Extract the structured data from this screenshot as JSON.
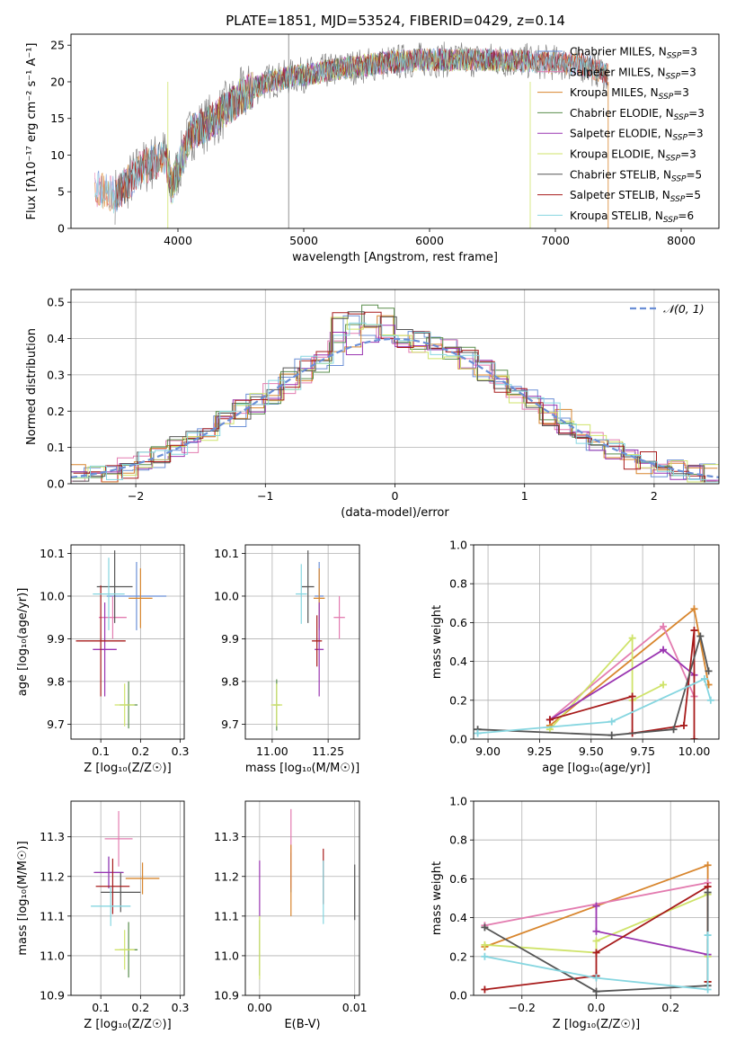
{
  "figure": {
    "title": "PLATE=1851, MJD=53524, FIBERID=0429, z=0.14"
  },
  "colors": {
    "chabrier_miles": "#6b8fd6",
    "salpeter_miles": "#e37cb0",
    "kroupa_miles": "#d8862e",
    "chabrier_elodie": "#5a8e4c",
    "salpeter_elodie": "#9a35b1",
    "kroupa_elodie": "#cfe36a",
    "chabrier_stelib": "#555555",
    "salpeter_stelib": "#a71b1b",
    "kroupa_stelib": "#86d6e0",
    "gaussian": "#6b8fd6"
  },
  "chart_data": [
    {
      "id": "spectrum",
      "type": "line",
      "title": "PLATE=1851, MJD=53524, FIBERID=0429, z=0.14",
      "xlabel": "wavelength [Angstrom, rest frame]",
      "ylabel": "Flux [fλ10⁻¹⁷ erg cm⁻² s⁻¹ A⁻¹]",
      "xlim": [
        3150,
        8300
      ],
      "ylim": [
        0,
        26.5
      ],
      "xticks": [
        "4000",
        "5000",
        "6000",
        "7000",
        "8000"
      ],
      "yticks": [
        "0",
        "5",
        "10",
        "15",
        "20",
        "25"
      ],
      "continuum": {
        "x": [
          3340,
          3500,
          3700,
          3900,
          3950,
          4100,
          4300,
          4500,
          4700,
          4900,
          5100,
          5300,
          5600,
          5900,
          6200,
          6500,
          6800,
          7000,
          7200,
          7350,
          7420
        ],
        "y": [
          5.5,
          4.5,
          8,
          10,
          5.5,
          13,
          15,
          18,
          20,
          20.7,
          21.2,
          21.8,
          22.5,
          23,
          23,
          23,
          22.8,
          22.6,
          22.4,
          21.5,
          21
        ]
      },
      "legend": [
        {
          "label": "Chabrier MILES, N",
          "sub": "SSP",
          "suffix": "=3",
          "color_key": "chabrier_miles"
        },
        {
          "label": "Salpeter MILES, N",
          "sub": "SSP",
          "suffix": "=3",
          "color_key": "salpeter_miles"
        },
        {
          "label": "Kroupa MILES, N",
          "sub": "SSP",
          "suffix": "=3",
          "color_key": "kroupa_miles"
        },
        {
          "label": "Chabrier ELODIE, N",
          "sub": "SSP",
          "suffix": "=3",
          "color_key": "chabrier_elodie"
        },
        {
          "label": "Salpeter ELODIE, N",
          "sub": "SSP",
          "suffix": "=3",
          "color_key": "salpeter_elodie"
        },
        {
          "label": "Kroupa ELODIE, N",
          "sub": "SSP",
          "suffix": "=3",
          "color_key": "kroupa_elodie"
        },
        {
          "label": "Chabrier STELIB, N",
          "sub": "SSP",
          "suffix": "=5",
          "color_key": "chabrier_stelib"
        },
        {
          "label": "Salpeter STELIB, N",
          "sub": "SSP",
          "suffix": "=5",
          "color_key": "salpeter_stelib"
        },
        {
          "label": "Kroupa STELIB, N",
          "sub": "SSP",
          "suffix": "=6",
          "color_key": "kroupa_stelib"
        }
      ]
    },
    {
      "id": "residuals",
      "type": "line",
      "xlabel": "(data-model)/error",
      "ylabel": "Normed distribution",
      "xlim": [
        -2.5,
        2.5
      ],
      "ylim": [
        0,
        0.535
      ],
      "xticks": [
        "−2",
        "−1",
        "0",
        "1",
        "2"
      ],
      "yticks": [
        "0.0",
        "0.1",
        "0.2",
        "0.3",
        "0.4",
        "0.5"
      ],
      "legend_label": "𝒩(0, 1)",
      "legend_position": "top-right",
      "grid": true
    },
    {
      "id": "z_vs_age",
      "type": "scatter",
      "xlabel": "Z [log₁₀(Z/Z☉)]",
      "ylabel": "age  [log₁₀(age/yr)]",
      "xlim": [
        0.025,
        0.31
      ],
      "ylim": [
        9.665,
        10.12
      ],
      "xticks": [
        "0.1",
        "0.2",
        "0.3"
      ],
      "yticks": [
        "9.7",
        "9.8",
        "9.9",
        "10.0",
        "10.1"
      ],
      "grid": true,
      "points": [
        {
          "c": "chabrier_miles",
          "x": 0.19,
          "xe": 0.15,
          "y": 10.0,
          "ye": 0.08
        },
        {
          "c": "salpeter_miles",
          "x": 0.13,
          "xe": 0.07,
          "y": 9.95,
          "ye": 0.05
        },
        {
          "c": "kroupa_miles",
          "x": 0.2,
          "xe": 0.06,
          "y": 9.995,
          "ye": 0.07
        },
        {
          "c": "chabrier_elodie",
          "x": 0.17,
          "xe": 0.045,
          "y": 9.745,
          "ye": 0.055
        },
        {
          "c": "salpeter_elodie",
          "x": 0.11,
          "xe": 0.06,
          "y": 9.875,
          "ye": 0.11
        },
        {
          "c": "kroupa_elodie",
          "x": 0.16,
          "xe": 0.05,
          "y": 9.745,
          "ye": 0.05
        },
        {
          "c": "chabrier_stelib",
          "x": 0.135,
          "xe": 0.09,
          "y": 10.022,
          "ye": 0.085
        },
        {
          "c": "salpeter_stelib",
          "x": 0.1,
          "xe": 0.125,
          "y": 9.895,
          "ye": 0.13
        },
        {
          "c": "kroupa_stelib",
          "x": 0.12,
          "xe": 0.08,
          "y": 10.005,
          "ye": 0.085
        }
      ]
    },
    {
      "id": "mass_vs_age",
      "type": "scatter",
      "xlabel": "mass [log₁₀(M/M☉)]",
      "ylabel": "",
      "xlim": [
        10.88,
        11.39
      ],
      "ylim": [
        9.665,
        10.12
      ],
      "xticks": [
        "11.00",
        "11.25"
      ],
      "yticks": [
        "9.7",
        "9.8",
        "9.9",
        "10.0",
        "10.1"
      ],
      "grid": true,
      "points": [
        {
          "c": "chabrier_miles",
          "x": 11.21,
          "xe": 0.04,
          "y": 10.0,
          "ye": 0.08
        },
        {
          "c": "salpeter_miles",
          "x": 11.3,
          "xe": 0.05,
          "y": 9.95,
          "ye": 0.05
        },
        {
          "c": "kroupa_miles",
          "x": 11.21,
          "xe": 0.05,
          "y": 9.995,
          "ye": 0.07
        },
        {
          "c": "chabrier_elodie",
          "x": 11.02,
          "xe": 0.03,
          "y": 9.745,
          "ye": 0.06
        },
        {
          "c": "salpeter_elodie",
          "x": 11.21,
          "xe": 0.04,
          "y": 9.875,
          "ye": 0.11
        },
        {
          "c": "kroupa_elodie",
          "x": 11.02,
          "xe": 0.05,
          "y": 9.745,
          "ye": 0.05
        },
        {
          "c": "chabrier_stelib",
          "x": 11.16,
          "xe": 0.055,
          "y": 10.022,
          "ye": 0.085
        },
        {
          "c": "salpeter_stelib",
          "x": 11.2,
          "xe": 0.045,
          "y": 9.895,
          "ye": 0.06
        },
        {
          "c": "kroupa_stelib",
          "x": 11.13,
          "xe": 0.05,
          "y": 10.005,
          "ye": 0.07
        }
      ]
    },
    {
      "id": "age_weights",
      "type": "line",
      "xlabel": "age  [log₁₀(age/yr)]",
      "ylabel": "mass weight",
      "xlim": [
        8.93,
        10.12
      ],
      "ylim": [
        0,
        1
      ],
      "xticks": [
        "9.00",
        "9.25",
        "9.50",
        "9.75",
        "10.00"
      ],
      "yticks": [
        "0.0",
        "0.2",
        "0.4",
        "0.6",
        "0.8",
        "1.0"
      ],
      "grid": true,
      "series": [
        {
          "c": "kroupa_miles",
          "x": [
            9.3,
            10.0,
            10.07
          ],
          "y": [
            0.07,
            0.67,
            0.28
          ]
        },
        {
          "c": "salpeter_miles",
          "x": [
            9.3,
            9.85,
            10.0
          ],
          "y": [
            0.1,
            0.58,
            0.22
          ]
        },
        {
          "c": "kroupa_elodie",
          "x": [
            9.3,
            9.7,
            9.7,
            9.85
          ],
          "y": [
            0.05,
            0.52,
            0.2,
            0.28
          ]
        },
        {
          "c": "salpeter_elodie",
          "x": [
            9.3,
            9.85,
            10.0
          ],
          "y": [
            0.1,
            0.46,
            0.33
          ]
        },
        {
          "c": "salpeter_stelib",
          "x": [
            9.3,
            9.7,
            9.7,
            9.95,
            10.0,
            10.0
          ],
          "y": [
            0.1,
            0.22,
            0.03,
            0.07,
            0.56,
            0.0
          ]
        },
        {
          "c": "chabrier_stelib",
          "x": [
            8.95,
            9.6,
            9.9,
            10.03,
            10.07
          ],
          "y": [
            0.05,
            0.02,
            0.05,
            0.53,
            0.35
          ]
        },
        {
          "c": "kroupa_stelib",
          "x": [
            8.95,
            9.6,
            10.05,
            10.08
          ],
          "y": [
            0.03,
            0.09,
            0.31,
            0.2
          ]
        }
      ]
    },
    {
      "id": "z_vs_mass",
      "type": "scatter",
      "xlabel": "Z [log₁₀(Z/Z☉)]",
      "ylabel": "mass [log₁₀(M/M☉)]",
      "xlim": [
        0.025,
        0.31
      ],
      "ylim": [
        10.9,
        11.39
      ],
      "xticks": [
        "0.1",
        "0.2",
        "0.3"
      ],
      "yticks": [
        "10.9",
        "11.0",
        "11.1",
        "11.2",
        "11.3"
      ],
      "grid": true,
      "points": [
        {
          "c": "chabrier_miles",
          "x": 0.12,
          "xe": 0.07,
          "y": 11.21,
          "ye": 0.04
        },
        {
          "c": "salpeter_miles",
          "x": 0.145,
          "xe": 0.07,
          "y": 11.295,
          "ye": 0.07
        },
        {
          "c": "kroupa_miles",
          "x": 0.205,
          "xe": 0.085,
          "y": 11.195,
          "ye": 0.04
        },
        {
          "c": "chabrier_elodie",
          "x": 0.17,
          "xe": 0.045,
          "y": 11.015,
          "ye": 0.07
        },
        {
          "c": "salpeter_elodie",
          "x": 0.12,
          "xe": 0.075,
          "y": 11.21,
          "ye": 0.04
        },
        {
          "c": "kroupa_elodie",
          "x": 0.16,
          "xe": 0.05,
          "y": 11.015,
          "ye": 0.05
        },
        {
          "c": "chabrier_stelib",
          "x": 0.15,
          "xe": 0.1,
          "y": 11.16,
          "ye": 0.05
        },
        {
          "c": "salpeter_stelib",
          "x": 0.13,
          "xe": 0.085,
          "y": 11.175,
          "ye": 0.07
        },
        {
          "c": "kroupa_stelib",
          "x": 0.125,
          "xe": 0.1,
          "y": 11.125,
          "ye": 0.05
        }
      ]
    },
    {
      "id": "ebv_vs_mass",
      "type": "scatter",
      "xlabel": "E(B-V)",
      "ylabel": "",
      "xlim": [
        -0.0015,
        0.0105
      ],
      "ylim": [
        10.9,
        11.39
      ],
      "xticks": [
        "0.00",
        "0.01"
      ],
      "yticks": [
        "10.9",
        "11.0",
        "11.1",
        "11.2",
        "11.3"
      ],
      "grid": true,
      "points": [
        {
          "c": "chabrier_miles",
          "x": 0.0033,
          "xe": 0,
          "y": 11.21,
          "ye": 0.05
        },
        {
          "c": "salpeter_miles",
          "x": 0.0033,
          "xe": 0,
          "y": 11.27,
          "ye": 0.1
        },
        {
          "c": "kroupa_miles",
          "x": 0.0033,
          "xe": 0,
          "y": 11.19,
          "ye": 0.09
        },
        {
          "c": "chabrier_elodie",
          "x": 0.0,
          "xe": 0,
          "y": 11.02,
          "ye": 0.07
        },
        {
          "c": "salpeter_elodie",
          "x": 0.0,
          "xe": 0,
          "y": 11.17,
          "ye": 0.07
        },
        {
          "c": "kroupa_elodie",
          "x": 0.0,
          "xe": 0,
          "y": 11.02,
          "ye": 0.08
        },
        {
          "c": "chabrier_stelib",
          "x": 0.01,
          "xe": 0,
          "y": 11.16,
          "ye": 0.07
        },
        {
          "c": "salpeter_stelib",
          "x": 0.0067,
          "xe": 0,
          "y": 11.2,
          "ye": 0.07
        },
        {
          "c": "kroupa_stelib",
          "x": 0.0067,
          "xe": 0,
          "y": 11.16,
          "ye": 0.08
        }
      ]
    },
    {
      "id": "z_weights",
      "type": "line",
      "xlabel": "Z [log₁₀(Z/Z☉)]",
      "ylabel": "mass weight",
      "xlim": [
        -0.33,
        0.33
      ],
      "ylim": [
        0,
        1
      ],
      "xticks": [
        "−0.2",
        "0.0",
        "0.2"
      ],
      "yticks": [
        "0.0",
        "0.2",
        "0.4",
        "0.6",
        "0.8",
        "1.0"
      ],
      "grid": true,
      "series": [
        {
          "c": "kroupa_miles",
          "x": [
            -0.3,
            0.3,
            0.3
          ],
          "y": [
            0.25,
            0.67,
            0.07
          ]
        },
        {
          "c": "salpeter_miles",
          "x": [
            -0.3,
            0.3
          ],
          "y": [
            0.36,
            0.58
          ]
        },
        {
          "c": "kroupa_elodie",
          "x": [
            -0.3,
            0.0,
            0.0,
            0.3,
            0.3
          ],
          "y": [
            0.26,
            0.22,
            0.28,
            0.52,
            0.2
          ]
        },
        {
          "c": "salpeter_elodie",
          "x": [
            0.0,
            0.0,
            0.3
          ],
          "y": [
            0.46,
            0.33,
            0.21
          ]
        },
        {
          "c": "salpeter_stelib",
          "x": [
            -0.3,
            0.0,
            0.0,
            0.3,
            0.3
          ],
          "y": [
            0.03,
            0.1,
            0.22,
            0.56,
            0.07
          ]
        },
        {
          "c": "chabrier_stelib",
          "x": [
            -0.3,
            0.0,
            0.3,
            0.3
          ],
          "y": [
            0.35,
            0.02,
            0.05,
            0.53
          ]
        },
        {
          "c": "kroupa_stelib",
          "x": [
            -0.3,
            0.0,
            0.3,
            0.3
          ],
          "y": [
            0.2,
            0.09,
            0.03,
            0.31
          ]
        }
      ]
    }
  ]
}
